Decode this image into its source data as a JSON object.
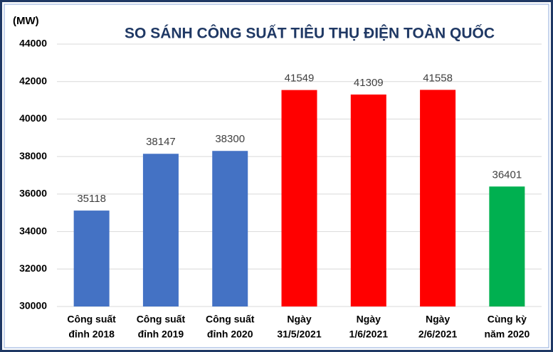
{
  "chart_data": {
    "type": "bar",
    "title": "SO SÁNH CÔNG SUẤT TIÊU THỤ ĐIỆN TOÀN QUỐC",
    "y_label": "(MW)",
    "categories": [
      [
        "Công suất",
        "đỉnh 2018"
      ],
      [
        "Công suất",
        "đỉnh 2019"
      ],
      [
        "Công suất",
        "đỉnh 2020"
      ],
      [
        "Ngày",
        "31/5/2021"
      ],
      [
        "Ngày",
        "1/6/2021"
      ],
      [
        "Ngày",
        "2/6/2021"
      ],
      [
        "Cùng kỳ",
        "năm 2020"
      ]
    ],
    "values": [
      35118,
      38147,
      38300,
      41549,
      41309,
      41558,
      36401
    ],
    "colors": [
      "#4472c4",
      "#4472c4",
      "#4472c4",
      "#ff0000",
      "#ff0000",
      "#ff0000",
      "#00b050"
    ],
    "ylim": [
      30000,
      44000
    ],
    "yticks": [
      30000,
      32000,
      34000,
      36000,
      38000,
      40000,
      42000,
      44000
    ],
    "grid": true
  }
}
